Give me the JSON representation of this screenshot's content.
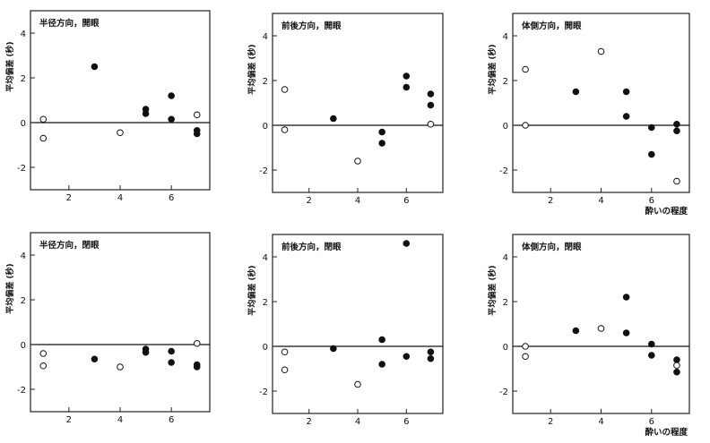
{
  "chart_data": [
    {
      "type": "scatter",
      "title": "半径方向，開眼",
      "xlabel": "",
      "ylabel": "平均偏差 (秒)",
      "xlim": [
        0.5,
        7.5
      ],
      "ylim": [
        -3,
        5
      ],
      "xticks": [
        2,
        4,
        6
      ],
      "yticks": [
        4,
        2,
        0,
        -2
      ],
      "series": [
        {
          "marker": "filled",
          "points": [
            [
              3,
              2.5
            ],
            [
              5,
              0.6
            ],
            [
              5,
              0.4
            ],
            [
              6,
              1.2
            ],
            [
              6,
              0.15
            ],
            [
              7,
              -0.35
            ],
            [
              7,
              -0.5
            ]
          ]
        },
        {
          "marker": "open",
          "points": [
            [
              1,
              0.15
            ],
            [
              1,
              -0.7
            ],
            [
              4,
              -0.45
            ],
            [
              7,
              0.35
            ]
          ]
        }
      ]
    },
    {
      "type": "scatter",
      "title": "前後方向，開眼",
      "xlabel": "",
      "ylabel": "平均偏差 (秒)",
      "xlim": [
        0.5,
        7.5
      ],
      "ylim": [
        -3,
        5
      ],
      "xticks": [
        2,
        4,
        6
      ],
      "yticks": [
        4,
        2,
        0,
        -2
      ],
      "series": [
        {
          "marker": "filled",
          "points": [
            [
              3,
              0.3
            ],
            [
              5,
              -0.3
            ],
            [
              5,
              -0.8
            ],
            [
              6,
              2.2
            ],
            [
              6,
              1.7
            ],
            [
              7,
              1.4
            ],
            [
              7,
              0.9
            ]
          ]
        },
        {
          "marker": "open",
          "points": [
            [
              1,
              1.6
            ],
            [
              1,
              -0.2
            ],
            [
              4,
              -1.6
            ],
            [
              7,
              0.05
            ]
          ]
        }
      ]
    },
    {
      "type": "scatter",
      "title": "体側方向，開眼",
      "xlabel": "酔いの程度",
      "ylabel": "平均偏差 (秒)",
      "xlim": [
        0.5,
        7.5
      ],
      "ylim": [
        -3,
        5
      ],
      "xticks": [
        2,
        4,
        6
      ],
      "yticks": [
        4,
        2,
        0,
        -2
      ],
      "series": [
        {
          "marker": "filled",
          "points": [
            [
              3,
              1.5
            ],
            [
              5,
              1.5
            ],
            [
              5,
              0.4
            ],
            [
              6,
              -0.1
            ],
            [
              6,
              -1.3
            ],
            [
              7,
              0.05
            ],
            [
              7,
              -0.25
            ]
          ]
        },
        {
          "marker": "open",
          "points": [
            [
              1,
              2.5
            ],
            [
              1,
              0.0
            ],
            [
              4,
              3.3
            ],
            [
              7,
              -2.5
            ]
          ]
        }
      ]
    },
    {
      "type": "scatter",
      "title": "半径方向，閉眼",
      "xlabel": "",
      "ylabel": "平均偏差 (秒)",
      "xlim": [
        0.5,
        7.5
      ],
      "ylim": [
        -3,
        5
      ],
      "xticks": [
        2,
        4,
        6
      ],
      "yticks": [
        4,
        2,
        0,
        -2
      ],
      "series": [
        {
          "marker": "filled",
          "points": [
            [
              3,
              -0.65
            ],
            [
              5,
              -0.2
            ],
            [
              5,
              -0.35
            ],
            [
              6,
              -0.3
            ],
            [
              6,
              -0.8
            ],
            [
              7,
              -0.9
            ],
            [
              7,
              -1.0
            ]
          ]
        },
        {
          "marker": "open",
          "points": [
            [
              1,
              -0.4
            ],
            [
              1,
              -0.95
            ],
            [
              4,
              -1.0
            ],
            [
              7,
              0.05
            ]
          ]
        }
      ]
    },
    {
      "type": "scatter",
      "title": "前後方向，閉眼",
      "xlabel": "",
      "ylabel": "平均偏差 (秒)",
      "xlim": [
        0.5,
        7.5
      ],
      "ylim": [
        -3,
        5
      ],
      "xticks": [
        2,
        4,
        6
      ],
      "yticks": [
        4,
        2,
        0,
        -2
      ],
      "series": [
        {
          "marker": "filled",
          "points": [
            [
              3,
              -0.1
            ],
            [
              5,
              0.3
            ],
            [
              5,
              -0.8
            ],
            [
              6,
              4.6
            ],
            [
              6,
              -0.45
            ],
            [
              7,
              -0.25
            ],
            [
              7,
              -0.55
            ]
          ]
        },
        {
          "marker": "open",
          "points": [
            [
              1,
              -0.25
            ],
            [
              1,
              -1.05
            ],
            [
              4,
              -1.7
            ]
          ]
        }
      ]
    },
    {
      "type": "scatter",
      "title": "体側方向，閉眼",
      "xlabel": "酔いの程度",
      "ylabel": "平均偏差 (秒)",
      "xlim": [
        0.5,
        7.5
      ],
      "ylim": [
        -3,
        5
      ],
      "xticks": [
        2,
        4,
        6
      ],
      "yticks": [
        4,
        2,
        0,
        -2
      ],
      "series": [
        {
          "marker": "filled",
          "points": [
            [
              3,
              0.7
            ],
            [
              5,
              2.2
            ],
            [
              5,
              0.6
            ],
            [
              6,
              0.1
            ],
            [
              6,
              -0.4
            ],
            [
              7,
              -0.6
            ],
            [
              7,
              -1.15
            ]
          ]
        },
        {
          "marker": "open",
          "points": [
            [
              1,
              0.0
            ],
            [
              1,
              -0.45
            ],
            [
              4,
              0.8
            ],
            [
              7,
              -0.85
            ]
          ]
        }
      ]
    }
  ]
}
